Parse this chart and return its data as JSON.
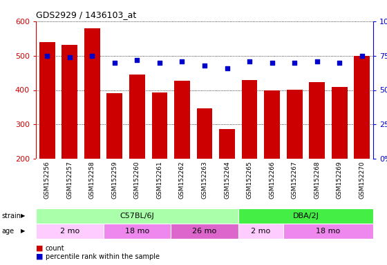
{
  "title": "GDS2929 / 1436103_at",
  "samples": [
    "GSM152256",
    "GSM152257",
    "GSM152258",
    "GSM152259",
    "GSM152260",
    "GSM152261",
    "GSM152262",
    "GSM152263",
    "GSM152264",
    "GSM152265",
    "GSM152266",
    "GSM152267",
    "GSM152268",
    "GSM152269",
    "GSM152270"
  ],
  "counts": [
    540,
    532,
    580,
    390,
    446,
    393,
    427,
    347,
    286,
    430,
    400,
    401,
    424,
    410,
    500
  ],
  "percentiles": [
    75,
    74,
    75,
    70,
    72,
    70,
    71,
    68,
    66,
    71,
    70,
    70,
    71,
    70,
    75
  ],
  "ylim_left": [
    200,
    600
  ],
  "ylim_right": [
    0,
    100
  ],
  "yticks_left": [
    200,
    300,
    400,
    500,
    600
  ],
  "yticks_right": [
    0,
    25,
    50,
    75,
    100
  ],
  "bar_color": "#cc0000",
  "dot_color": "#0000cc",
  "strain_groups": [
    {
      "label": "C57BL/6J",
      "start": 0,
      "end": 9,
      "color": "#aaffaa"
    },
    {
      "label": "DBA/2J",
      "start": 9,
      "end": 15,
      "color": "#44ee44"
    }
  ],
  "age_groups": [
    {
      "label": "2 mo",
      "start": 0,
      "end": 3,
      "color": "#ffccff"
    },
    {
      "label": "18 mo",
      "start": 3,
      "end": 6,
      "color": "#ee88ee"
    },
    {
      "label": "26 mo",
      "start": 6,
      "end": 9,
      "color": "#dd66dd"
    },
    {
      "label": "2 mo",
      "start": 9,
      "end": 11,
      "color": "#ffccff"
    },
    {
      "label": "18 mo",
      "start": 11,
      "end": 15,
      "color": "#ee88ee"
    }
  ],
  "bar_color_hex": "#cc0000",
  "dot_color_hex": "#0000cc",
  "grid_color": "#000000",
  "tick_area_bg": "#cccccc",
  "fig_width": 5.6,
  "fig_height": 3.84,
  "dpi": 100
}
